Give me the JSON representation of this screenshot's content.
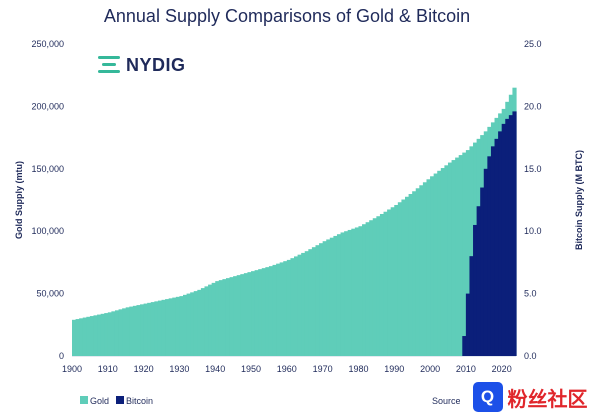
{
  "chart_data": {
    "type": "area",
    "title": "Annual Supply Comparisons of Gold & Bitcoin",
    "ylabel_left": "Gold Supply (mtu)",
    "ylabel_right": "Bitcoin Supply (M BTC)",
    "x_ticks": [
      "1900",
      "1910",
      "1920",
      "1930",
      "1940",
      "1950",
      "1960",
      "1970",
      "1980",
      "1990",
      "2000",
      "2010",
      "2020"
    ],
    "y_ticks_left": [
      "0",
      "50,000",
      "100,000",
      "150,000",
      "200,000",
      "250,000"
    ],
    "y_ticks_right": [
      "0.0",
      "5.0",
      "10.0",
      "15.0",
      "20.0",
      "25.0"
    ],
    "xlim": [
      1900,
      2024
    ],
    "ylim_left": [
      0,
      250000
    ],
    "ylim_right": [
      0,
      25
    ],
    "legend_position": "bottom-left",
    "series": [
      {
        "name": "Gold",
        "axis": "left",
        "color": "#5fcdb9",
        "x": [
          1900,
          1905,
          1910,
          1915,
          1920,
          1925,
          1930,
          1935,
          1940,
          1945,
          1950,
          1955,
          1960,
          1965,
          1970,
          1975,
          1980,
          1985,
          1990,
          1995,
          2000,
          2005,
          2010,
          2015,
          2020,
          2023
        ],
        "values": [
          29000,
          32000,
          35000,
          39000,
          42000,
          45000,
          48000,
          53000,
          60000,
          64000,
          68000,
          72000,
          77000,
          84000,
          92000,
          99000,
          104000,
          112000,
          121000,
          132000,
          144000,
          155000,
          165000,
          180000,
          198000,
          215000
        ]
      },
      {
        "name": "Bitcoin",
        "axis": "right",
        "color": "#0b1f7a",
        "x": [
          2009,
          2010,
          2011,
          2012,
          2013,
          2014,
          2015,
          2016,
          2017,
          2018,
          2019,
          2020,
          2021,
          2022,
          2023
        ],
        "values": [
          1.6,
          5.0,
          8.0,
          10.5,
          12.0,
          13.5,
          15.0,
          16.0,
          16.8,
          17.4,
          18.0,
          18.6,
          19.0,
          19.3,
          19.6
        ]
      }
    ]
  },
  "branding": {
    "logo_text": "NYDIG",
    "logo_icon": "nydig-mark-icon"
  },
  "source_text": "Source: Glass No",
  "watermark": {
    "icon": "community-logo-icon",
    "text": "粉丝社区"
  }
}
